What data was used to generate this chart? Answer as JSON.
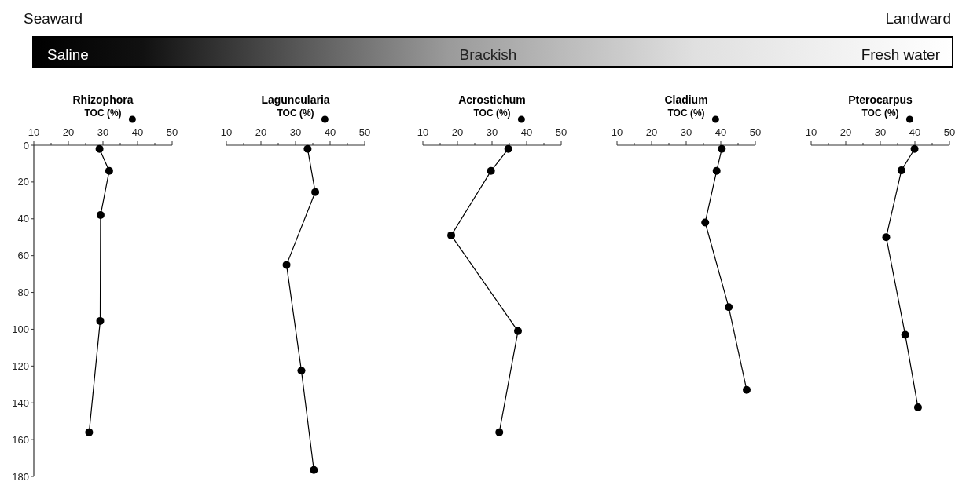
{
  "chart_data": [
    {
      "type": "line",
      "title": "Rhizophora",
      "xlabel": "TOC (%)",
      "marker": "circle",
      "line_style": "solid",
      "color": "#000000",
      "annotations": [
        "Seaward",
        "Landward",
        "Saline",
        "Brackish",
        "Fresh water"
      ],
      "x": [
        29,
        31.8,
        29.3,
        29.2,
        26
      ],
      "values": [
        2,
        14,
        38,
        95.5,
        156
      ],
      "xlim": [
        10,
        50
      ],
      "xticks": [
        10,
        {
          "value": 15,
          "label": null
        },
        20,
        {
          "value": 25,
          "label": null
        },
        30,
        {
          "value": 35,
          "label": null
        },
        40,
        {
          "value": 45,
          "label": null
        },
        50
      ],
      "ylim": [
        180,
        0
      ],
      "yticks": [
        0,
        20,
        40,
        60,
        80,
        100,
        120,
        140,
        160,
        180
      ]
    },
    {
      "type": "line",
      "title": "Laguncularia",
      "xlabel": "TOC (%)",
      "marker": "circle",
      "line_style": "solid",
      "color": "#000000",
      "tick_labels": "x",
      "x": [
        33.5,
        35.7,
        27.4,
        31.7,
        35.3
      ],
      "values": [
        2,
        25.5,
        65,
        122.5,
        176.5
      ],
      "xlim": [
        10,
        50
      ],
      "xticks": [
        10,
        {
          "value": 15,
          "label": null
        },
        20,
        {
          "value": 25,
          "label": null
        },
        30,
        {
          "value": 35,
          "label": null
        },
        40,
        {
          "value": 45,
          "label": null
        },
        50
      ],
      "ylim": [
        180,
        0
      ]
    },
    {
      "type": "line",
      "title": "Acrostichum",
      "xlabel": "TOC (%)",
      "marker": "circle",
      "line_style": "solid",
      "color": "#000000",
      "tick_labels": "x",
      "x": [
        34.7,
        29.7,
        18.2,
        37.5,
        32.1
      ],
      "values": [
        2,
        14,
        49,
        101,
        156
      ],
      "xlim": [
        10,
        50
      ],
      "xticks": [
        10,
        {
          "value": 15,
          "label": null
        },
        20,
        {
          "value": 25,
          "label": null
        },
        30,
        {
          "value": 35,
          "label": null
        },
        40,
        {
          "value": 45,
          "label": null
        },
        50
      ],
      "ylim": [
        180,
        0
      ]
    },
    {
      "type": "line",
      "title": "Cladium",
      "xlabel": "TOC (%)",
      "marker": "circle",
      "line_style": "solid",
      "color": "#000000",
      "tick_labels": "x",
      "x": [
        40.3,
        38.8,
        35.5,
        42.3,
        47.5
      ],
      "values": [
        2,
        14,
        42,
        88,
        133
      ],
      "xlim": [
        10,
        50
      ],
      "xticks": [
        10,
        {
          "value": 15,
          "label": null
        },
        20,
        {
          "value": 25,
          "label": null
        },
        30,
        {
          "value": 35,
          "label": null
        },
        40,
        {
          "value": 45,
          "label": null
        },
        50
      ],
      "ylim": [
        180,
        0
      ]
    },
    {
      "type": "line",
      "title": "Pterocarpus",
      "xlabel": "TOC (%)",
      "marker": "circle",
      "line_style": "solid",
      "color": "#000000",
      "tick_labels": "x",
      "x": [
        39.9,
        36.1,
        31.7,
        37.2,
        40.9
      ],
      "values": [
        2,
        13.7,
        50,
        103,
        142.5
      ],
      "xlim": [
        10,
        50
      ],
      "xticks": [
        10,
        {
          "value": 15,
          "label": null
        },
        20,
        {
          "value": 25,
          "label": null
        },
        30,
        {
          "value": 35,
          "label": null
        },
        40,
        {
          "value": 45,
          "label": null
        },
        50
      ],
      "ylim": [
        180,
        0
      ]
    }
  ]
}
